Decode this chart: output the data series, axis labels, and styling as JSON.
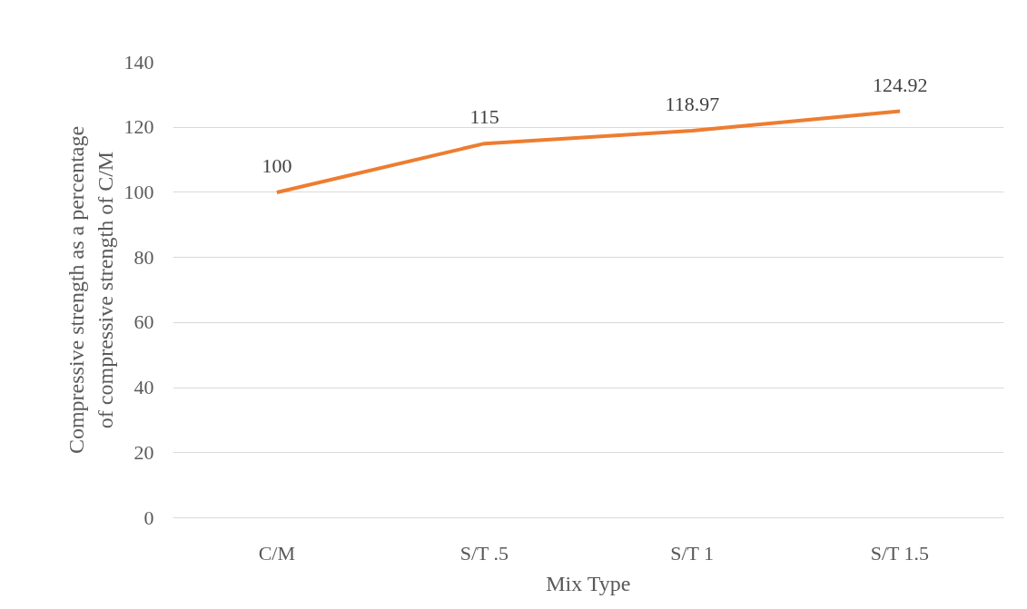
{
  "chart_data": {
    "type": "line",
    "xlabel": "Mix Type",
    "ylabel": "Compressive strength as a percentage\nof compressive strength of C/M",
    "categories": [
      "C/M",
      "S/T .5",
      "S/T 1",
      "S/T 1.5"
    ],
    "series": [
      {
        "color": "#ed7d31",
        "values": [
          100,
          115,
          118.97,
          124.92
        ]
      }
    ],
    "ylim": [
      0,
      140
    ],
    "yticks": [
      0,
      20,
      40,
      60,
      80,
      100,
      120,
      140
    ],
    "grid": "y",
    "data_labels": true,
    "marker": "none",
    "line_style": "solid"
  }
}
